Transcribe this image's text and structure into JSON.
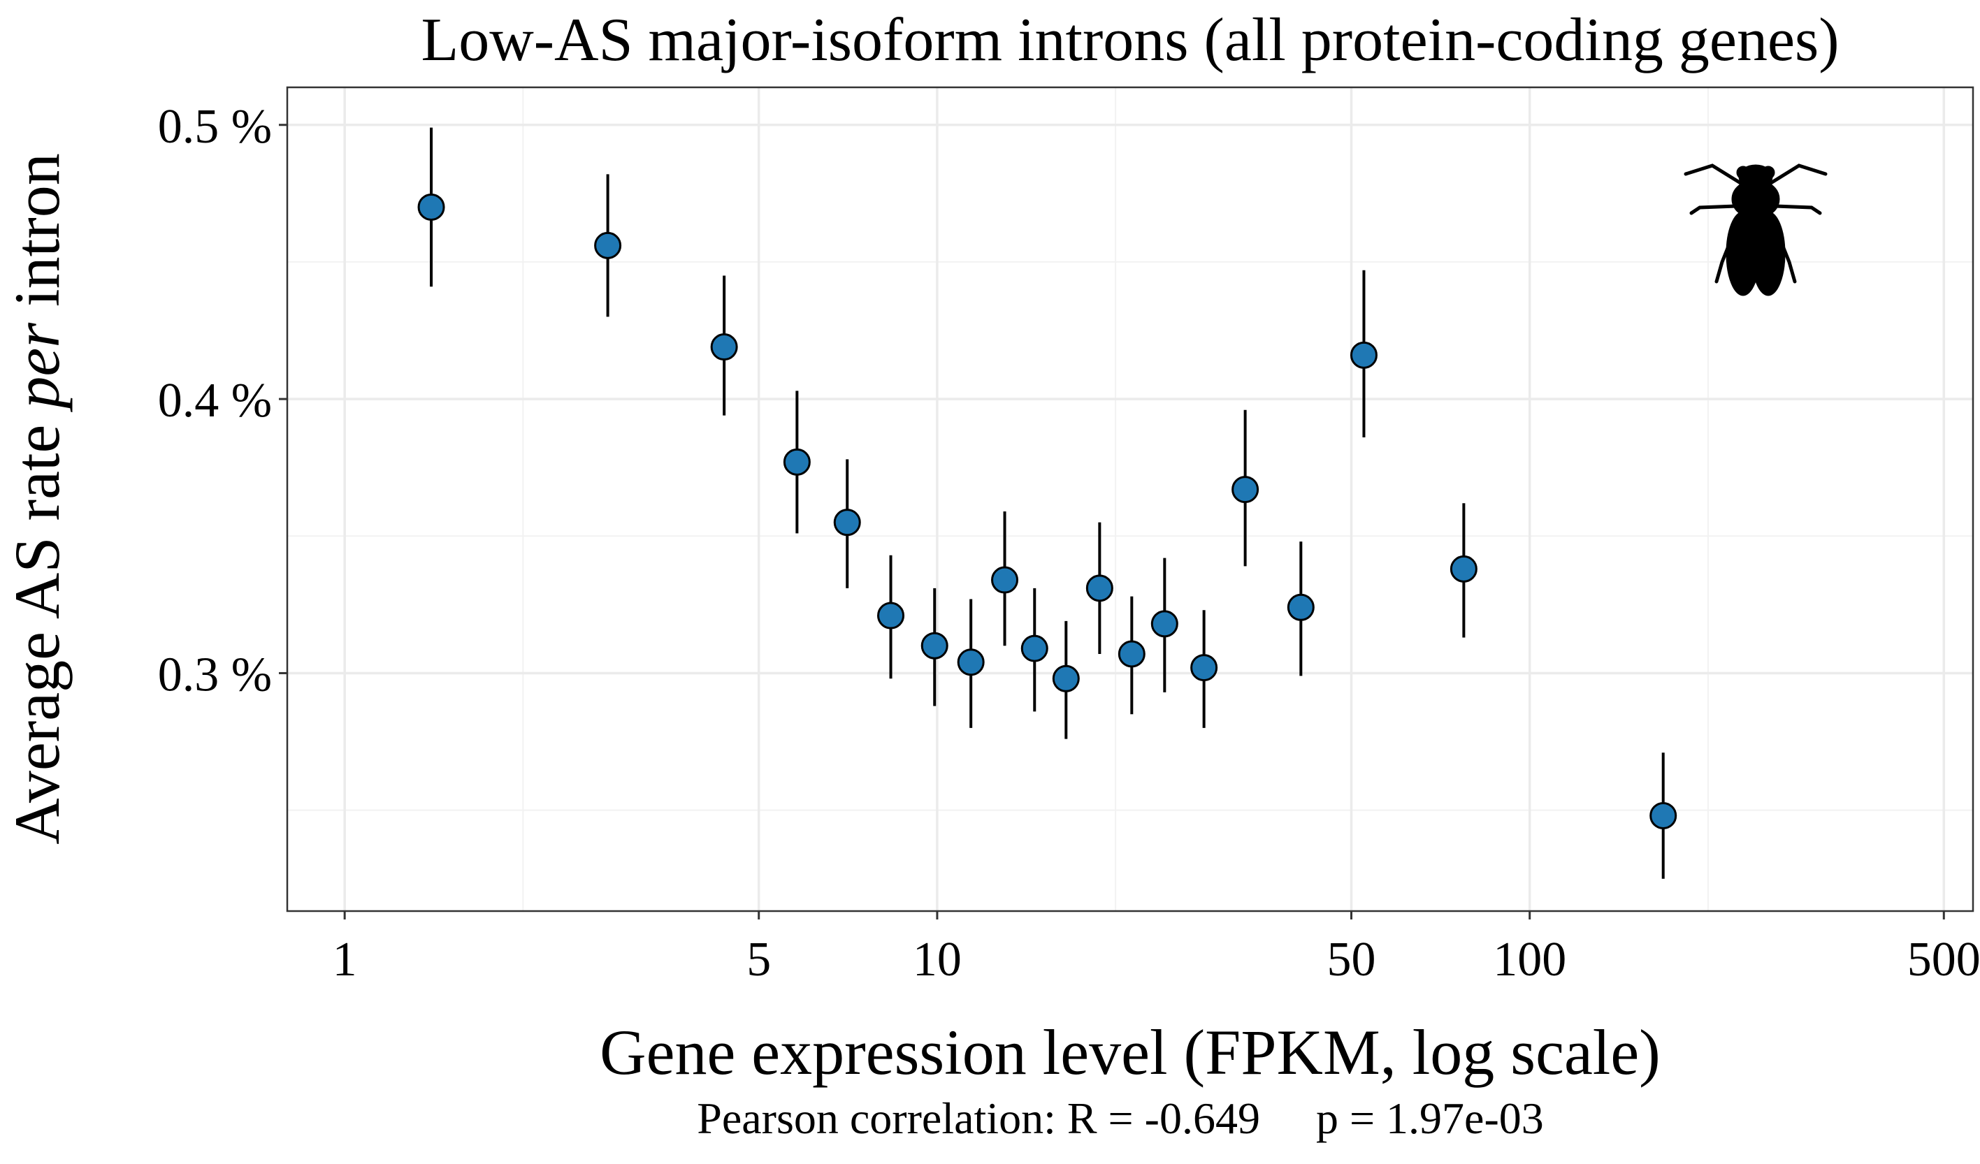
{
  "chart_data": {
    "type": "scatter",
    "title": "Low-AS major-isoform introns (all protein-coding genes)",
    "xlabel": "Gene expression level (FPKM, log scale)",
    "ylabel_main": "Average AS rate",
    "ylabel_italic": "per",
    "ylabel_end": "intron",
    "x_scale": "log10",
    "xlim": [
      0.8,
      560
    ],
    "ylim": [
      0.2132,
      0.5137
    ],
    "x_ticks": [
      {
        "value": 1,
        "label": "1"
      },
      {
        "value": 5,
        "label": "5"
      },
      {
        "value": 10,
        "label": "10"
      },
      {
        "value": 50,
        "label": "50"
      },
      {
        "value": 100,
        "label": "100"
      },
      {
        "value": 500,
        "label": "500"
      }
    ],
    "x_minor_grid": [
      2,
      20,
      200
    ],
    "y_ticks": [
      {
        "value": 0.3,
        "label": "0.3 %"
      },
      {
        "value": 0.4,
        "label": "0.4 %"
      },
      {
        "value": 0.5,
        "label": "0.5 %"
      }
    ],
    "y_minor_grid": [
      0.25,
      0.35,
      0.45
    ],
    "grid": true,
    "legend": "none",
    "point_color": "#1f78b4",
    "points": [
      {
        "x": 1.4,
        "y": 0.47,
        "ymin": 0.441,
        "ymax": 0.499
      },
      {
        "x": 2.78,
        "y": 0.456,
        "ymin": 0.43,
        "ymax": 0.482
      },
      {
        "x": 4.37,
        "y": 0.419,
        "ymin": 0.394,
        "ymax": 0.445
      },
      {
        "x": 5.8,
        "y": 0.377,
        "ymin": 0.351,
        "ymax": 0.403
      },
      {
        "x": 7.05,
        "y": 0.355,
        "ymin": 0.331,
        "ymax": 0.378
      },
      {
        "x": 8.35,
        "y": 0.321,
        "ymin": 0.298,
        "ymax": 0.343
      },
      {
        "x": 9.9,
        "y": 0.31,
        "ymin": 0.288,
        "ymax": 0.331
      },
      {
        "x": 11.4,
        "y": 0.304,
        "ymin": 0.28,
        "ymax": 0.327
      },
      {
        "x": 13.0,
        "y": 0.334,
        "ymin": 0.31,
        "ymax": 0.359
      },
      {
        "x": 14.6,
        "y": 0.309,
        "ymin": 0.286,
        "ymax": 0.331
      },
      {
        "x": 16.5,
        "y": 0.298,
        "ymin": 0.276,
        "ymax": 0.319
      },
      {
        "x": 18.8,
        "y": 0.331,
        "ymin": 0.307,
        "ymax": 0.355
      },
      {
        "x": 21.3,
        "y": 0.307,
        "ymin": 0.285,
        "ymax": 0.328
      },
      {
        "x": 24.2,
        "y": 0.318,
        "ymin": 0.293,
        "ymax": 0.342
      },
      {
        "x": 28.2,
        "y": 0.302,
        "ymin": 0.28,
        "ymax": 0.323
      },
      {
        "x": 33.1,
        "y": 0.367,
        "ymin": 0.339,
        "ymax": 0.396
      },
      {
        "x": 41.1,
        "y": 0.324,
        "ymin": 0.299,
        "ymax": 0.348
      },
      {
        "x": 52.5,
        "y": 0.416,
        "ymin": 0.386,
        "ymax": 0.447
      },
      {
        "x": 77.4,
        "y": 0.338,
        "ymin": 0.313,
        "ymax": 0.362
      },
      {
        "x": 168.0,
        "y": 0.248,
        "ymin": 0.225,
        "ymax": 0.271
      }
    ],
    "caption_left": "Pearson correlation: R = -0.649",
    "caption_right": "p = 1.97e-03",
    "icon": "fly-silhouette-icon"
  }
}
